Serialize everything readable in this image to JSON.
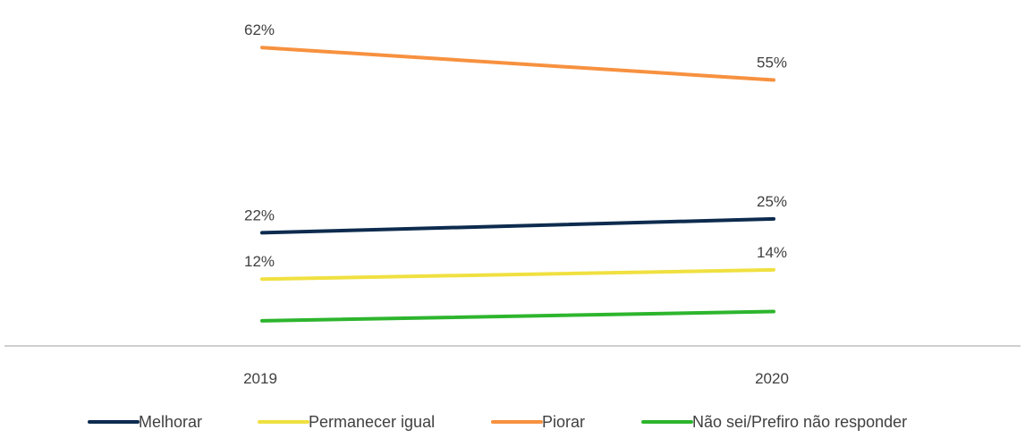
{
  "chart_data": {
    "type": "line",
    "title": "",
    "xlabel": "",
    "ylabel": "",
    "categories": [
      "2019",
      "2020"
    ],
    "series": [
      {
        "name": "Melhorar",
        "values": [
          22,
          25
        ],
        "labels": [
          "22%",
          "25%"
        ],
        "color": "#0d2b4e"
      },
      {
        "name": "Permanecer igual",
        "values": [
          12,
          14
        ],
        "labels": [
          "12%",
          "14%"
        ],
        "color": "#f0e040"
      },
      {
        "name": "Piorar",
        "values": [
          62,
          55
        ],
        "labels": [
          "62%",
          "55%"
        ],
        "color": "#f7913f"
      },
      {
        "name": "Não sei/Prefiro não responder",
        "values": [
          3,
          5
        ],
        "labels": [
          "",
          ""
        ],
        "color": "#2db52d"
      }
    ],
    "ylim": [
      0,
      62
    ],
    "grid": false,
    "y_axis_visible": false,
    "legend_position": "bottom"
  }
}
